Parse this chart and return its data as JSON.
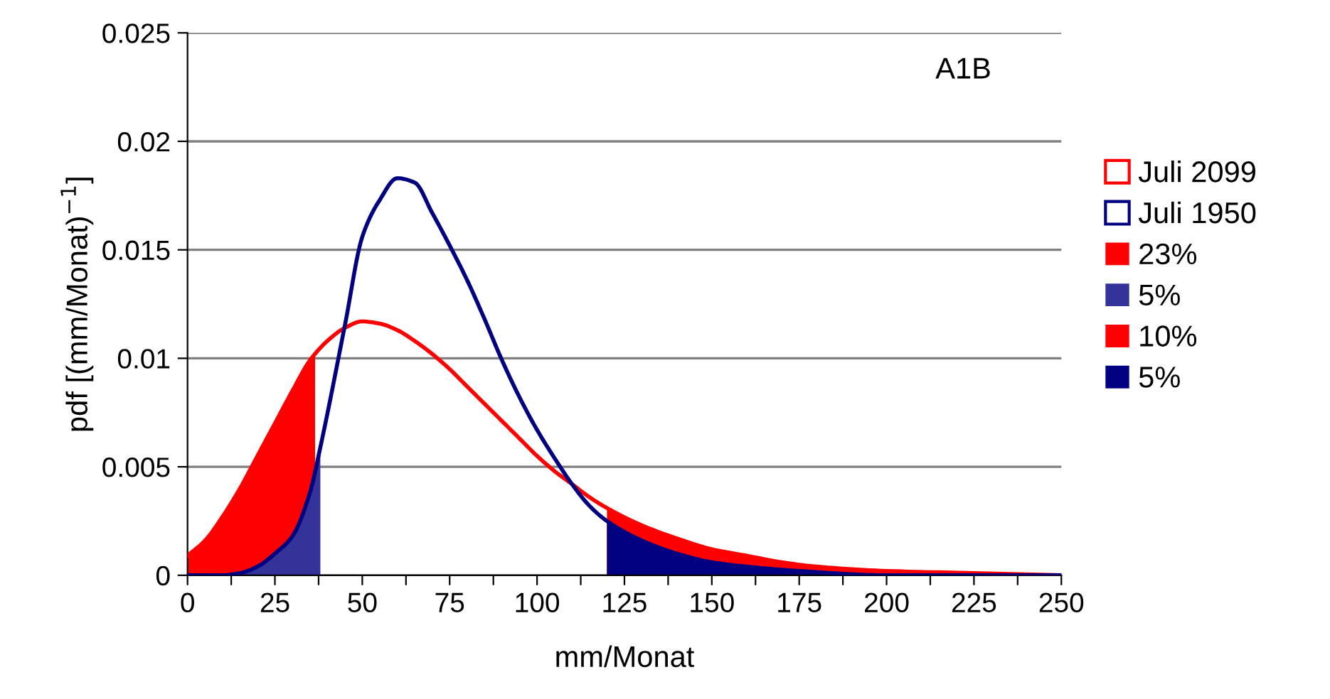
{
  "chart_data": {
    "type": "line",
    "xlabel": "mm/Monat",
    "ylabel": "pdf [(mm/Monat)$^{−1}$]",
    "annotations": [
      "A1B"
    ],
    "xlim": [
      0,
      250
    ],
    "xticks": [
      0,
      {
        "value": 12.5,
        "label": null
      },
      25,
      {
        "value": 37.5,
        "label": null
      },
      50,
      {
        "value": 62.5,
        "label": null
      },
      75,
      {
        "value": 87.5,
        "label": null
      },
      100,
      {
        "value": 112.5,
        "label": null
      },
      125,
      {
        "value": 137.5,
        "label": null
      },
      150,
      {
        "value": 162.5,
        "label": null
      },
      175,
      {
        "value": 187.5,
        "label": null
      },
      200,
      {
        "value": 212.5,
        "label": null
      },
      225,
      {
        "value": 237.5,
        "label": null
      },
      250
    ],
    "ylim": [
      0,
      0.025
    ],
    "yticks": [
      0,
      0.005,
      0.01,
      0.015,
      0.02,
      0.025
    ],
    "grid": "y",
    "legend": "right",
    "marker": "none",
    "line_style": "solid",
    "series": [
      {
        "name": "Juli 2099",
        "color": "#ff0000",
        "x": [
          0,
          5,
          10,
          15,
          20,
          25,
          30,
          35,
          40,
          45,
          50,
          55,
          60,
          65,
          70,
          75,
          80,
          85,
          90,
          95,
          100,
          105,
          110,
          115,
          120,
          130,
          140,
          150,
          160,
          170,
          180,
          200,
          225,
          250
        ],
        "values": [
          0.0009,
          0.0016,
          0.0027,
          0.004,
          0.0055,
          0.007,
          0.0085,
          0.0099,
          0.0108,
          0.0114,
          0.0117,
          0.0116,
          0.0113,
          0.0108,
          0.0102,
          0.0095,
          0.0087,
          0.0079,
          0.0071,
          0.0063,
          0.0055,
          0.0048,
          0.0042,
          0.0036,
          0.0031,
          0.0023,
          0.0017,
          0.0012,
          0.0009,
          0.0006,
          0.0004,
          0.0002,
          0.0001,
          0
        ]
      },
      {
        "name": "Juli 1950",
        "color": "#000080",
        "x": [
          0,
          10,
          15,
          20,
          25,
          30,
          35,
          38,
          45,
          50,
          55,
          60,
          65,
          70,
          75,
          80,
          85,
          90,
          95,
          100,
          105,
          110,
          115,
          120,
          130,
          140,
          150,
          160,
          175,
          200,
          250
        ],
        "values": [
          0,
          0,
          0.0001,
          0.0004,
          0.001,
          0.0018,
          0.0038,
          0.0059,
          0.0115,
          0.0156,
          0.0173,
          0.0183,
          0.0181,
          0.0167,
          0.0152,
          0.0136,
          0.0118,
          0.0099,
          0.0082,
          0.0067,
          0.0054,
          0.0042,
          0.0032,
          0.0025,
          0.0016,
          0.001,
          0.0006,
          0.0004,
          0.0002,
          0,
          0
        ]
      },
      {
        "name": "23%",
        "type": "area",
        "color": "#ff0000",
        "x": [
          0,
          5,
          10,
          15,
          20,
          25,
          30,
          35,
          36.5
        ],
        "values": [
          0.0009,
          0.0016,
          0.0027,
          0.004,
          0.0055,
          0.007,
          0.0085,
          0.0099,
          0.0101
        ]
      },
      {
        "name": "5%",
        "type": "area",
        "color": "#333399",
        "x": [
          0,
          10,
          15,
          20,
          25,
          30,
          35,
          38
        ],
        "values": [
          0,
          0,
          0.0001,
          0.0004,
          0.001,
          0.0018,
          0.0038,
          0.0059
        ]
      },
      {
        "name": "10%",
        "type": "area",
        "color": "#ff0000",
        "x": [
          120,
          130,
          140,
          150,
          160,
          170,
          180,
          200,
          225,
          250
        ],
        "values": [
          0.0031,
          0.0023,
          0.0017,
          0.0012,
          0.0009,
          0.0006,
          0.0004,
          0.0002,
          0.0001,
          0
        ]
      },
      {
        "name": "5%",
        "type": "area",
        "color": "#000080",
        "x": [
          120,
          130,
          140,
          150,
          160,
          175,
          200,
          250
        ],
        "values": [
          0.0025,
          0.0016,
          0.001,
          0.0006,
          0.0004,
          0.0002,
          0,
          0
        ]
      }
    ]
  }
}
